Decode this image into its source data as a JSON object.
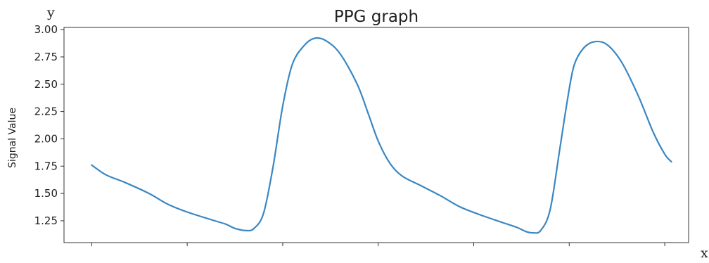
{
  "chart_data": {
    "type": "line",
    "title": "PPG graph",
    "ylabel": "Signal Value",
    "xlabel": "",
    "corner_labels": {
      "y": "y",
      "x": "x"
    },
    "ylim": [
      1.05,
      3.02
    ],
    "yticks": [
      1.25,
      1.5,
      1.75,
      2.0,
      2.25,
      2.5,
      2.75,
      3.0
    ],
    "ytick_labels": [
      "1.25",
      "1.50",
      "1.75",
      "2.00",
      "2.25",
      "2.50",
      "2.75",
      "3.00"
    ],
    "xlim": [
      -0.29,
      6.25
    ],
    "xticks": [
      0,
      1,
      2,
      3,
      4,
      5,
      6
    ],
    "grid": false,
    "series": [
      {
        "color": "#3a87c2",
        "points": [
          [
            0.0,
            1.76
          ],
          [
            0.15,
            1.67
          ],
          [
            0.35,
            1.6
          ],
          [
            0.6,
            1.5
          ],
          [
            0.8,
            1.4
          ],
          [
            1.0,
            1.33
          ],
          [
            1.25,
            1.26
          ],
          [
            1.4,
            1.22
          ],
          [
            1.5,
            1.18
          ],
          [
            1.62,
            1.16
          ],
          [
            1.7,
            1.18
          ],
          [
            1.8,
            1.32
          ],
          [
            1.9,
            1.75
          ],
          [
            2.0,
            2.3
          ],
          [
            2.1,
            2.68
          ],
          [
            2.22,
            2.85
          ],
          [
            2.33,
            2.92
          ],
          [
            2.45,
            2.9
          ],
          [
            2.6,
            2.78
          ],
          [
            2.78,
            2.5
          ],
          [
            2.9,
            2.22
          ],
          [
            3.0,
            1.98
          ],
          [
            3.12,
            1.78
          ],
          [
            3.25,
            1.66
          ],
          [
            3.45,
            1.57
          ],
          [
            3.65,
            1.48
          ],
          [
            3.85,
            1.38
          ],
          [
            4.05,
            1.31
          ],
          [
            4.28,
            1.24
          ],
          [
            4.45,
            1.19
          ],
          [
            4.55,
            1.15
          ],
          [
            4.62,
            1.14
          ],
          [
            4.7,
            1.16
          ],
          [
            4.8,
            1.35
          ],
          [
            4.9,
            1.9
          ],
          [
            4.98,
            2.35
          ],
          [
            5.05,
            2.67
          ],
          [
            5.15,
            2.83
          ],
          [
            5.27,
            2.89
          ],
          [
            5.4,
            2.86
          ],
          [
            5.55,
            2.7
          ],
          [
            5.72,
            2.4
          ],
          [
            5.88,
            2.06
          ],
          [
            6.0,
            1.86
          ],
          [
            6.07,
            1.79
          ]
        ]
      }
    ]
  }
}
